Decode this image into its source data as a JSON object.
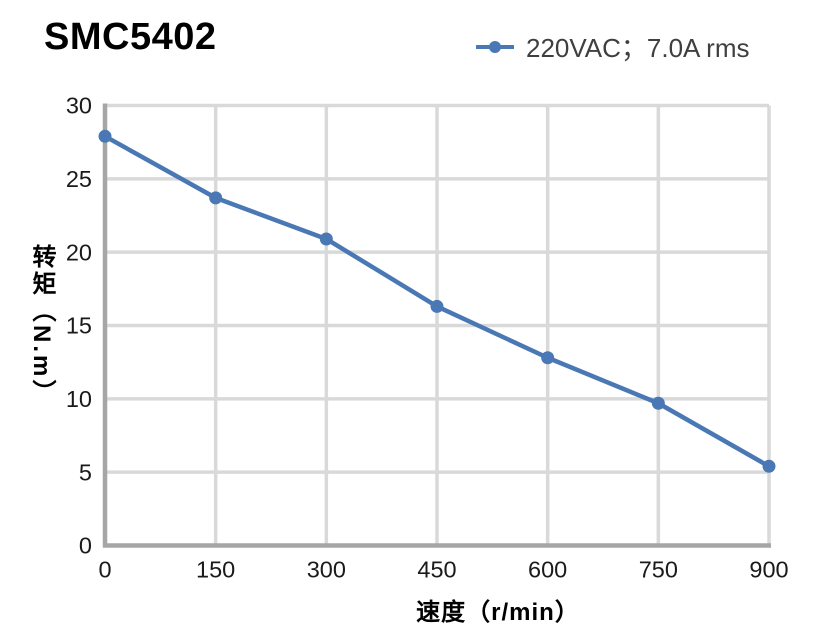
{
  "title": "SMC5402",
  "legend": {
    "marker_icon": "line-with-circle-marker",
    "label": "220VAC；7.0A rms"
  },
  "chart_data": {
    "type": "line",
    "title": "SMC5402",
    "xlabel": "速度（r/min）",
    "ylabel": "转矩（N.m）",
    "x": [
      0,
      150,
      300,
      450,
      600,
      750,
      900
    ],
    "series": [
      {
        "name": "220VAC；7.0A rms",
        "values": [
          27.9,
          23.7,
          20.9,
          16.3,
          12.8,
          9.7,
          5.4
        ]
      }
    ],
    "xlim": [
      0,
      900
    ],
    "ylim": [
      0,
      30
    ],
    "x_ticks": [
      0,
      150,
      300,
      450,
      600,
      750,
      900
    ],
    "y_ticks": [
      0,
      5,
      10,
      15,
      20,
      25,
      30
    ],
    "grid": true,
    "legend_position": "top-right",
    "colors": {
      "line": "#4a78b4",
      "marker": "#4a78b4",
      "grid": "#d9d9d9",
      "spine": "#a6a6a6",
      "tick_text": "#1a1a1a",
      "legend_text": "#3f3f3f",
      "title_text": "#000000"
    }
  }
}
